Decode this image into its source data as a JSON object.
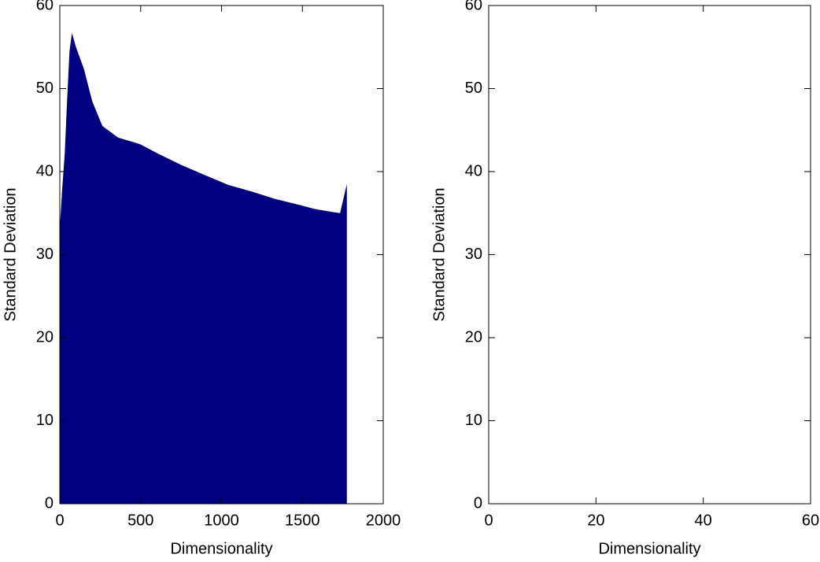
{
  "chart_data": [
    {
      "type": "area",
      "color": "#000080",
      "xlabel": "Dimensionality",
      "ylabel": "Standard Deviation",
      "x": [
        0,
        15,
        30,
        45,
        60,
        75,
        100,
        150,
        200,
        263,
        360,
        496,
        603,
        750,
        895,
        1041,
        1187,
        1333,
        1479,
        1576,
        1698,
        1733,
        1757,
        1775
      ],
      "values": [
        33.2,
        38,
        42,
        48.5,
        54.5,
        56.7,
        55,
        52.3,
        48.5,
        45.5,
        44.1,
        43.3,
        42.2,
        40.8,
        39.6,
        38.4,
        37.6,
        36.7,
        36,
        35.5,
        35.1,
        35,
        37,
        38.5
      ],
      "xlim": [
        0,
        2000
      ],
      "ylim": [
        0,
        60
      ],
      "xticks": [
        0,
        500,
        1000,
        1500,
        2000
      ],
      "yticks": [
        0,
        10,
        20,
        30,
        40,
        50,
        60
      ]
    },
    {
      "type": "line",
      "xlabel": "Dimensionality",
      "ylabel": "Standard Deviation",
      "xlim": [
        0,
        60
      ],
      "ylim": [
        0,
        60
      ],
      "xticks": [
        0,
        20,
        40,
        60
      ],
      "yticks": [
        0,
        10,
        20,
        30,
        40,
        50,
        60
      ]
    }
  ]
}
